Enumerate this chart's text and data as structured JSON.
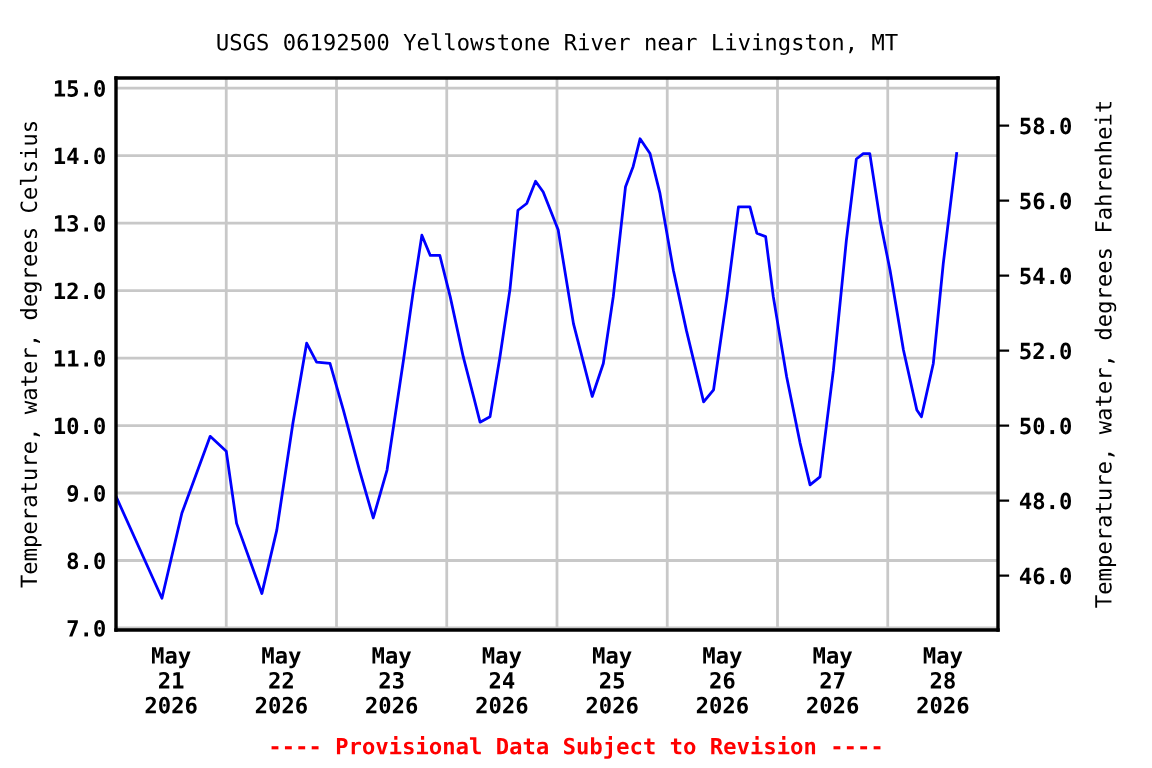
{
  "chart_data": {
    "type": "line",
    "title": "USGS 06192500 Yellowstone River near Livingston, MT",
    "ylabel": "Temperature, water, degrees Celsius",
    "y2label": "Temperature, water, degrees Fahrenheit",
    "annotations": [
      "---- Provisional Data Subject to Revision ----"
    ],
    "x": [
      "2026-05-21T00:00",
      "2026-05-21T10:00",
      "2026-05-21T14:20",
      "2026-05-21T20:30",
      "2026-05-22T00:00",
      "2026-05-22T02:15",
      "2026-05-22T07:45",
      "2026-05-22T11:00",
      "2026-05-22T14:30",
      "2026-05-22T17:30",
      "2026-05-22T19:40",
      "2026-05-22T22:35",
      "2026-05-23T01:30",
      "2026-05-23T05:00",
      "2026-05-23T08:00",
      "2026-05-23T11:00",
      "2026-05-23T14:35",
      "2026-05-23T16:45",
      "2026-05-23T18:35",
      "2026-05-23T20:25",
      "2026-05-23T22:30",
      "2026-05-24T00:45",
      "2026-05-24T03:35",
      "2026-05-24T05:50",
      "2026-05-24T07:15",
      "2026-05-24T09:25",
      "2026-05-24T11:35",
      "2026-05-24T13:45",
      "2026-05-24T15:30",
      "2026-05-24T17:25",
      "2026-05-24T19:20",
      "2026-05-24T21:00",
      "2026-05-25T00:15",
      "2026-05-25T03:35",
      "2026-05-25T07:40",
      "2026-05-25T10:05",
      "2026-05-25T12:15",
      "2026-05-25T14:55",
      "2026-05-25T16:35",
      "2026-05-25T18:05",
      "2026-05-25T20:15",
      "2026-05-25T22:25",
      "2026-05-26T01:20",
      "2026-05-26T04:10",
      "2026-05-26T07:55",
      "2026-05-26T10:05",
      "2026-05-26T13:00",
      "2026-05-26T15:30",
      "2026-05-26T18:00",
      "2026-05-26T19:30",
      "2026-05-26T21:25",
      "2026-05-26T23:05",
      "2026-05-27T02:00",
      "2026-05-27T04:55",
      "2026-05-27T07:05",
      "2026-05-27T09:15",
      "2026-05-27T12:10",
      "2026-05-27T15:00",
      "2026-05-27T17:10",
      "2026-05-27T18:40",
      "2026-05-27T20:05",
      "2026-05-27T22:20",
      "2026-05-28T00:30",
      "2026-05-28T03:25",
      "2026-05-28T06:20",
      "2026-05-28T07:20",
      "2026-05-28T09:55",
      "2026-05-28T12:05",
      "2026-05-28T15:00"
    ],
    "series": [
      {
        "color": "#0000ff",
        "values": [
          8.95,
          7.44,
          8.7,
          9.84,
          9.62,
          8.55,
          7.51,
          8.45,
          10.03,
          11.22,
          10.94,
          10.92,
          10.23,
          9.34,
          8.63,
          9.34,
          10.97,
          12.01,
          12.82,
          12.52,
          12.52,
          11.91,
          11.02,
          10.43,
          10.05,
          10.13,
          11.02,
          12.01,
          13.19,
          13.29,
          13.62,
          13.46,
          12.9,
          11.51,
          10.43,
          10.92,
          11.91,
          13.54,
          13.84,
          14.25,
          14.03,
          13.44,
          12.3,
          11.41,
          10.35,
          10.53,
          11.91,
          13.24,
          13.24,
          12.85,
          12.8,
          11.91,
          10.72,
          9.74,
          9.12,
          9.24,
          10.82,
          12.75,
          13.95,
          14.03,
          14.03,
          13.04,
          12.3,
          11.12,
          10.23,
          10.13,
          10.92,
          12.4,
          14.03
        ]
      }
    ],
    "xlim": [
      "2026-05-21T00:00",
      "2026-05-29T00:00"
    ],
    "xticks": [
      {
        "value": "2026-05-21T12:00",
        "label": "May\n21\n2026"
      },
      {
        "value": "2026-05-22T12:00",
        "label": "May\n22\n2026"
      },
      {
        "value": "2026-05-23T12:00",
        "label": "May\n23\n2026"
      },
      {
        "value": "2026-05-24T12:00",
        "label": "May\n24\n2026"
      },
      {
        "value": "2026-05-25T12:00",
        "label": "May\n25\n2026"
      },
      {
        "value": "2026-05-26T12:00",
        "label": "May\n26\n2026"
      },
      {
        "value": "2026-05-27T12:00",
        "label": "May\n27\n2026"
      },
      {
        "value": "2026-05-28T12:00",
        "label": "May\n28\n2026"
      },
      {
        "value": "2026-05-22T00:00",
        "label": null
      },
      {
        "value": "2026-05-23T00:00",
        "label": null
      },
      {
        "value": "2026-05-24T00:00",
        "label": null
      },
      {
        "value": "2026-05-25T00:00",
        "label": null
      },
      {
        "value": "2026-05-26T00:00",
        "label": null
      },
      {
        "value": "2026-05-27T00:00",
        "label": null
      },
      {
        "value": "2026-05-28T00:00",
        "label": null
      }
    ],
    "ylim": [
      6.97,
      15.15
    ],
    "yticks": [
      {
        "value": 7,
        "label": "7.0"
      },
      {
        "value": 8,
        "label": "8.0"
      },
      {
        "value": 9,
        "label": "9.0"
      },
      {
        "value": 10,
        "label": "10.0"
      },
      {
        "value": 11,
        "label": "11.0"
      },
      {
        "value": 12,
        "label": "12.0"
      },
      {
        "value": 13,
        "label": "13.0"
      },
      {
        "value": 14,
        "label": "14.0"
      },
      {
        "value": 15,
        "label": "15.0"
      }
    ],
    "y2lim": [
      44.55,
      59.27
    ],
    "y2ticks": [
      {
        "value": 46,
        "label": "46.0"
      },
      {
        "value": 48,
        "label": "48.0"
      },
      {
        "value": 50,
        "label": "50.0"
      },
      {
        "value": 52,
        "label": "52.0"
      },
      {
        "value": 54,
        "label": "54.0"
      },
      {
        "value": 56,
        "label": "56.0"
      },
      {
        "value": 58,
        "label": "58.0"
      }
    ],
    "grid": true,
    "marker": "none",
    "line_style": "solid",
    "legend": false
  }
}
